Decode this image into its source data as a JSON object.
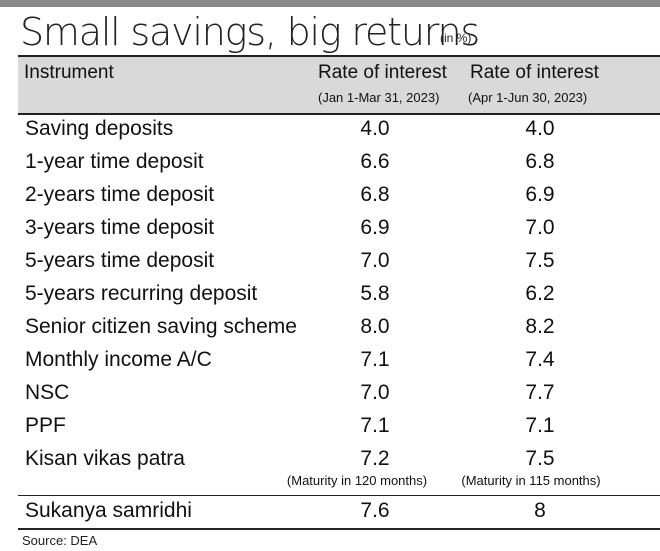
{
  "chart_data": {
    "type": "table",
    "title": "Small savings, big returns",
    "unit": "(in %)",
    "columns": [
      {
        "label": "Instrument",
        "sub": ""
      },
      {
        "label": "Rate of interest",
        "sub": "(Jan 1-Mar 31, 2023)"
      },
      {
        "label": "Rate of interest",
        "sub": "(Apr 1-Jun 30, 2023)"
      }
    ],
    "rows": [
      {
        "instrument": "Saving deposits",
        "q1": "4.0",
        "q2": "4.0"
      },
      {
        "instrument": "1-year time deposit",
        "q1": "6.6",
        "q2": "6.8"
      },
      {
        "instrument": "2-years time deposit",
        "q1": "6.8",
        "q2": "6.9"
      },
      {
        "instrument": "3-years time deposit",
        "q1": "6.9",
        "q2": "7.0"
      },
      {
        "instrument": "5-years time deposit",
        "q1": "7.0",
        "q2": "7.5"
      },
      {
        "instrument": "5-years recurring deposit",
        "q1": "5.8",
        "q2": "6.2"
      },
      {
        "instrument": "Senior citizen saving scheme",
        "q1": "8.0",
        "q2": "8.2"
      },
      {
        "instrument": "Monthly income A/C",
        "q1": "7.1",
        "q2": "7.4"
      },
      {
        "instrument": "NSC",
        "q1": "7.0",
        "q2": "7.7"
      },
      {
        "instrument": "PPF",
        "q1": "7.1",
        "q2": "7.1"
      },
      {
        "instrument": "Kisan vikas patra",
        "q1": "7.2",
        "q2": "7.5",
        "q1_note": "(Maturity in 120 months)",
        "q2_note": "(Maturity in 115 months)"
      },
      {
        "instrument": "Sukanya samridhi",
        "q1": "7.6",
        "q2": "8"
      }
    ],
    "source": "Source: DEA"
  }
}
